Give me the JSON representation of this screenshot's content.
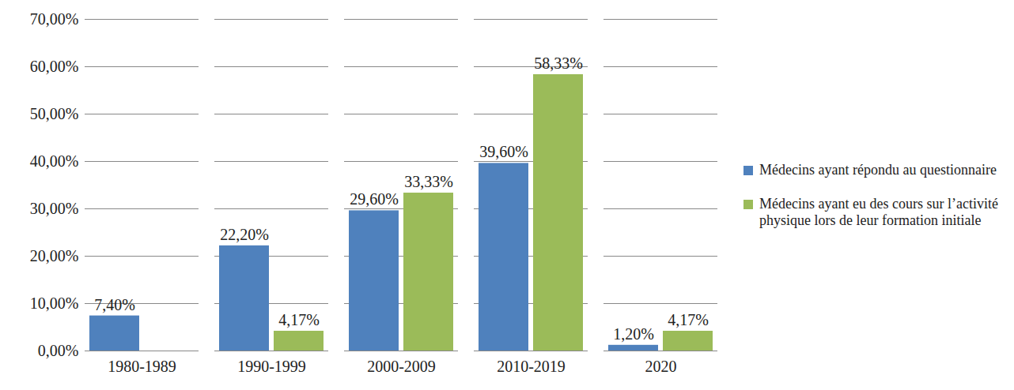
{
  "chart_data": {
    "type": "bar",
    "categories": [
      "1980-1989",
      "1990-1999",
      "2000-2009",
      "2010-2019",
      "2020"
    ],
    "series": [
      {
        "name": "Médecins ayant répondu au questionnaire",
        "color": "#4f81bd",
        "values": [
          7.4,
          22.2,
          29.6,
          39.6,
          1.2
        ],
        "value_labels": [
          "7,40%",
          "22,20%",
          "29,60%",
          "39,60%",
          "1,20%"
        ]
      },
      {
        "name": "Médecins ayant eu des cours sur l’activité physique lors de leur formation initiale",
        "color": "#9bbb59",
        "values": [
          null,
          4.17,
          33.33,
          58.33,
          4.17
        ],
        "value_labels": [
          null,
          "4,17%",
          "33,33%",
          "58,33%",
          "4,17%"
        ]
      }
    ],
    "ylim": [
      0,
      70
    ],
    "yticks": [
      {
        "value": 0,
        "label": "0,00%"
      },
      {
        "value": 10,
        "label": "10,00%"
      },
      {
        "value": 20,
        "label": "20,00%"
      },
      {
        "value": 30,
        "label": "30,00%"
      },
      {
        "value": 40,
        "label": "40,00%"
      },
      {
        "value": 50,
        "label": "50,00%"
      },
      {
        "value": 60,
        "label": "60,00%"
      },
      {
        "value": 70,
        "label": "70,00%"
      }
    ],
    "grid": true,
    "legend": "right",
    "data_labels": true
  }
}
